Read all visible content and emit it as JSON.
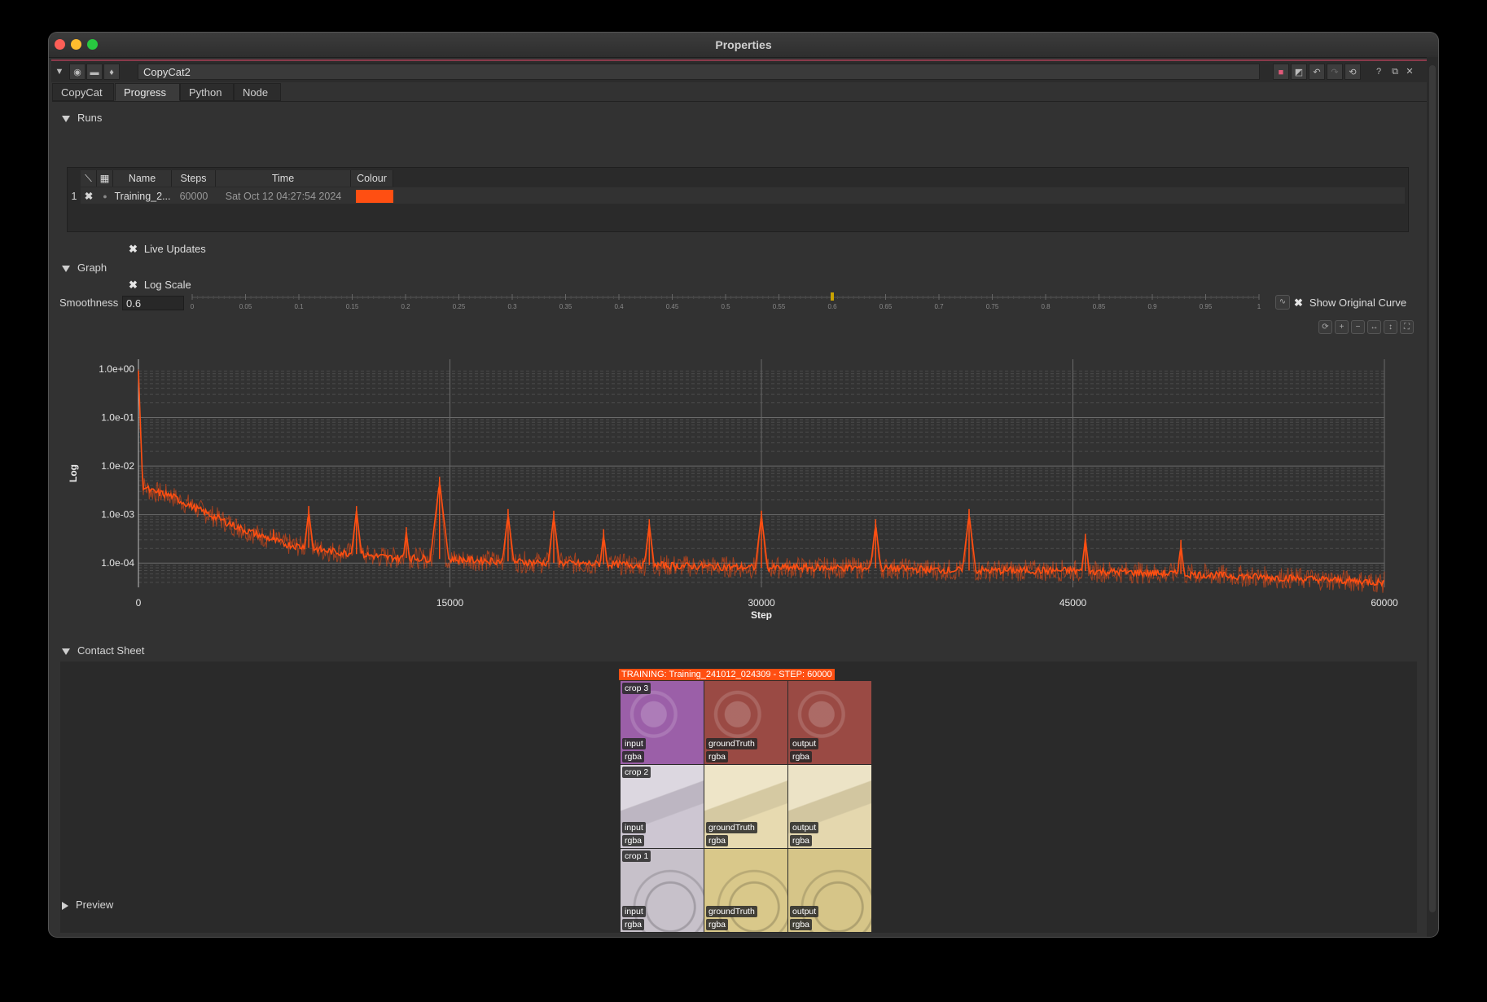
{
  "window": {
    "title": "Properties"
  },
  "toolbar": {
    "node_name": "CopyCat2",
    "help": "?"
  },
  "tabs": [
    "CopyCat",
    "Progress",
    "Python",
    "Node"
  ],
  "sections": {
    "runs": "Runs",
    "graph": "Graph",
    "contact_sheet": "Contact Sheet",
    "preview": "Preview"
  },
  "runs_table": {
    "headers": {
      "name": "Name",
      "steps": "Steps",
      "time": "Time",
      "colour": "Colour"
    },
    "rows": [
      {
        "index": "1",
        "name": "Training_2...",
        "steps": "60000",
        "time": "Sat Oct 12 04:27:54 2024",
        "colour": "#ff4f12"
      }
    ]
  },
  "options": {
    "live_updates": "Live Updates",
    "log_scale": "Log Scale",
    "smoothness_label": "Smoothness",
    "smoothness_value": "0.6",
    "show_original_curve": "Show Original Curve"
  },
  "slider": {
    "ticks": [
      "0",
      "0.05",
      "0.1",
      "0.15",
      "0.2",
      "0.25",
      "0.3",
      "0.35",
      "0.4",
      "0.45",
      "0.5",
      "0.55",
      "0.6",
      "0.65",
      "0.7",
      "0.75",
      "0.8",
      "0.85",
      "0.9",
      "0.95",
      "1"
    ],
    "value": 0.6
  },
  "chart_data": {
    "type": "line",
    "xlabel": "Step",
    "ylabel": "Log",
    "x_ticks": [
      "0",
      "15000",
      "30000",
      "45000",
      "60000"
    ],
    "y_ticks": [
      "1.0e+00",
      "1.0e-01",
      "1.0e-02",
      "1.0e-03",
      "1.0e-04"
    ],
    "xlim": [
      0,
      60000
    ],
    "ylim_log10": [
      -4.5,
      0.2
    ],
    "log_scale": true,
    "grid": true,
    "series": [
      {
        "color": "#ff4f12",
        "x": [
          0,
          200,
          600,
          1500,
          3000,
          5000,
          7000,
          9000,
          12000,
          15000,
          20000,
          25000,
          30000,
          35000,
          40000,
          45000,
          50000,
          55000,
          60000
        ],
        "values": [
          1.0,
          0.004,
          0.003,
          0.0025,
          0.0012,
          0.0005,
          0.00025,
          0.00018,
          0.00013,
          0.00012,
          0.0001,
          9e-05,
          8e-05,
          8e-05,
          7e-05,
          7e-05,
          6e-05,
          5e-05,
          4e-05
        ]
      }
    ],
    "spikes": [
      {
        "x": 2700,
        "value": 0.0015
      },
      {
        "x": 6500,
        "value": 0.0005
      },
      {
        "x": 8200,
        "value": 0.0015
      },
      {
        "x": 10500,
        "value": 0.0015
      },
      {
        "x": 12900,
        "value": 0.00055
      },
      {
        "x": 14500,
        "value": 0.006
      },
      {
        "x": 17800,
        "value": 0.0013
      },
      {
        "x": 20000,
        "value": 0.0012
      },
      {
        "x": 22400,
        "value": 0.0005
      },
      {
        "x": 24600,
        "value": 0.0008
      },
      {
        "x": 30000,
        "value": 0.0012
      },
      {
        "x": 35500,
        "value": 0.0008
      },
      {
        "x": 40000,
        "value": 0.0013
      },
      {
        "x": 45600,
        "value": 0.0004
      },
      {
        "x": 50200,
        "value": 0.0003
      }
    ]
  },
  "contact_sheet": {
    "title": "TRAINING: Training_241012_024309 - STEP: 60000",
    "crops": [
      {
        "name": "crop 3",
        "cells": [
          {
            "label": "input",
            "channel": "rgba",
            "color": "#9b5fa8"
          },
          {
            "label": "groundTruth",
            "channel": "rgba",
            "color": "#9a4a44"
          },
          {
            "label": "output",
            "channel": "rgba",
            "color": "#9a4a44"
          }
        ]
      },
      {
        "name": "crop 2",
        "cells": [
          {
            "label": "input",
            "channel": "rgba",
            "color": "#cdc6d2"
          },
          {
            "label": "groundTruth",
            "channel": "rgba",
            "color": "#e7dab0"
          },
          {
            "label": "output",
            "channel": "rgba",
            "color": "#e4d7ae"
          }
        ]
      },
      {
        "name": "crop 1",
        "cells": [
          {
            "label": "input",
            "channel": "rgba",
            "color": "#c7c1ca"
          },
          {
            "label": "groundTruth",
            "channel": "rgba",
            "color": "#d9c88a"
          },
          {
            "label": "output",
            "channel": "rgba",
            "color": "#d6c588"
          }
        ]
      }
    ]
  }
}
